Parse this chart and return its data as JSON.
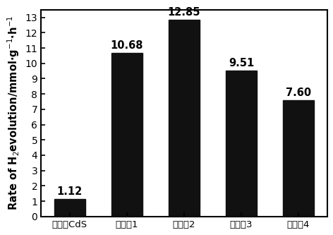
{
  "categories": [
    "未掺杂CdS",
    "实施例1",
    "实施例2",
    "实施例3",
    "实施例4"
  ],
  "values": [
    1.12,
    10.68,
    12.85,
    9.51,
    7.6
  ],
  "bar_color": "#111111",
  "ylim": [
    0,
    13.5
  ],
  "yticks": [
    0,
    1,
    2,
    3,
    4,
    5,
    6,
    7,
    8,
    9,
    10,
    11,
    12,
    13
  ],
  "bar_width": 0.55,
  "tick_fontsize": 10,
  "ylabel_fontsize": 10.5,
  "value_label_fontsize": 10.5,
  "xtick_fontsize": 9.5
}
